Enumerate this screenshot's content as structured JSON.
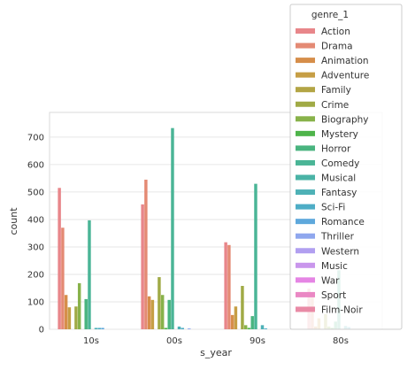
{
  "chart_data": {
    "type": "bar",
    "xlabel": "s_year",
    "ylabel": "count",
    "categories": [
      "10s",
      "00s",
      "90s",
      "80s"
    ],
    "ylim": [
      0,
      790
    ],
    "yticks": [
      0,
      100,
      200,
      300,
      400,
      500,
      600,
      700
    ],
    "grid": true,
    "legend": {
      "title": "genre_1",
      "placement": "top-right"
    },
    "series": [
      {
        "name": "Action",
        "color": "#e8868a",
        "values": [
          515,
          455,
          317,
          148
        ]
      },
      {
        "name": "Drama",
        "color": "#e48a74",
        "values": [
          370,
          545,
          307,
          135
        ]
      },
      {
        "name": "Animation",
        "color": "#d68e4a",
        "values": [
          125,
          120,
          52,
          10
        ]
      },
      {
        "name": "Adventure",
        "color": "#c69e45",
        "values": [
          80,
          107,
          83,
          40
        ]
      },
      {
        "name": "Family",
        "color": "#b3a545",
        "values": [
          0,
          0,
          0,
          0
        ]
      },
      {
        "name": "Crime",
        "color": "#a0aa45",
        "values": [
          83,
          190,
          158,
          55
        ]
      },
      {
        "name": "Biography",
        "color": "#88b24a",
        "values": [
          168,
          125,
          15,
          10
        ]
      },
      {
        "name": "Mystery",
        "color": "#4eb44a",
        "values": [
          0,
          5,
          5,
          5
        ]
      },
      {
        "name": "Horror",
        "color": "#49b47f",
        "values": [
          110,
          107,
          48,
          28
        ]
      },
      {
        "name": "Comedy",
        "color": "#4ab596",
        "values": [
          397,
          733,
          530,
          215
        ]
      },
      {
        "name": "Musical",
        "color": "#4ab3a6",
        "values": [
          0,
          0,
          0,
          0
        ]
      },
      {
        "name": "Fantasy",
        "color": "#4db1b6",
        "values": [
          5,
          10,
          15,
          12
        ]
      },
      {
        "name": "Sci-Fi",
        "color": "#4eadc6",
        "values": [
          5,
          5,
          3,
          8
        ]
      },
      {
        "name": "Romance",
        "color": "#5ea8dc",
        "values": [
          5,
          0,
          0,
          0
        ]
      },
      {
        "name": "Thriller",
        "color": "#8fa7ee",
        "values": [
          0,
          3,
          0,
          0
        ]
      },
      {
        "name": "Western",
        "color": "#b19ff0",
        "values": [
          0,
          0,
          0,
          0
        ]
      },
      {
        "name": "Music",
        "color": "#c996ec",
        "values": [
          0,
          0,
          0,
          0
        ]
      },
      {
        "name": "War",
        "color": "#e585e4",
        "values": [
          0,
          0,
          0,
          0
        ]
      },
      {
        "name": "Sport",
        "color": "#ea88c4",
        "values": [
          0,
          0,
          0,
          0
        ]
      },
      {
        "name": "Film-Noir",
        "color": "#e98aa6",
        "values": [
          0,
          0,
          0,
          0
        ]
      }
    ]
  }
}
